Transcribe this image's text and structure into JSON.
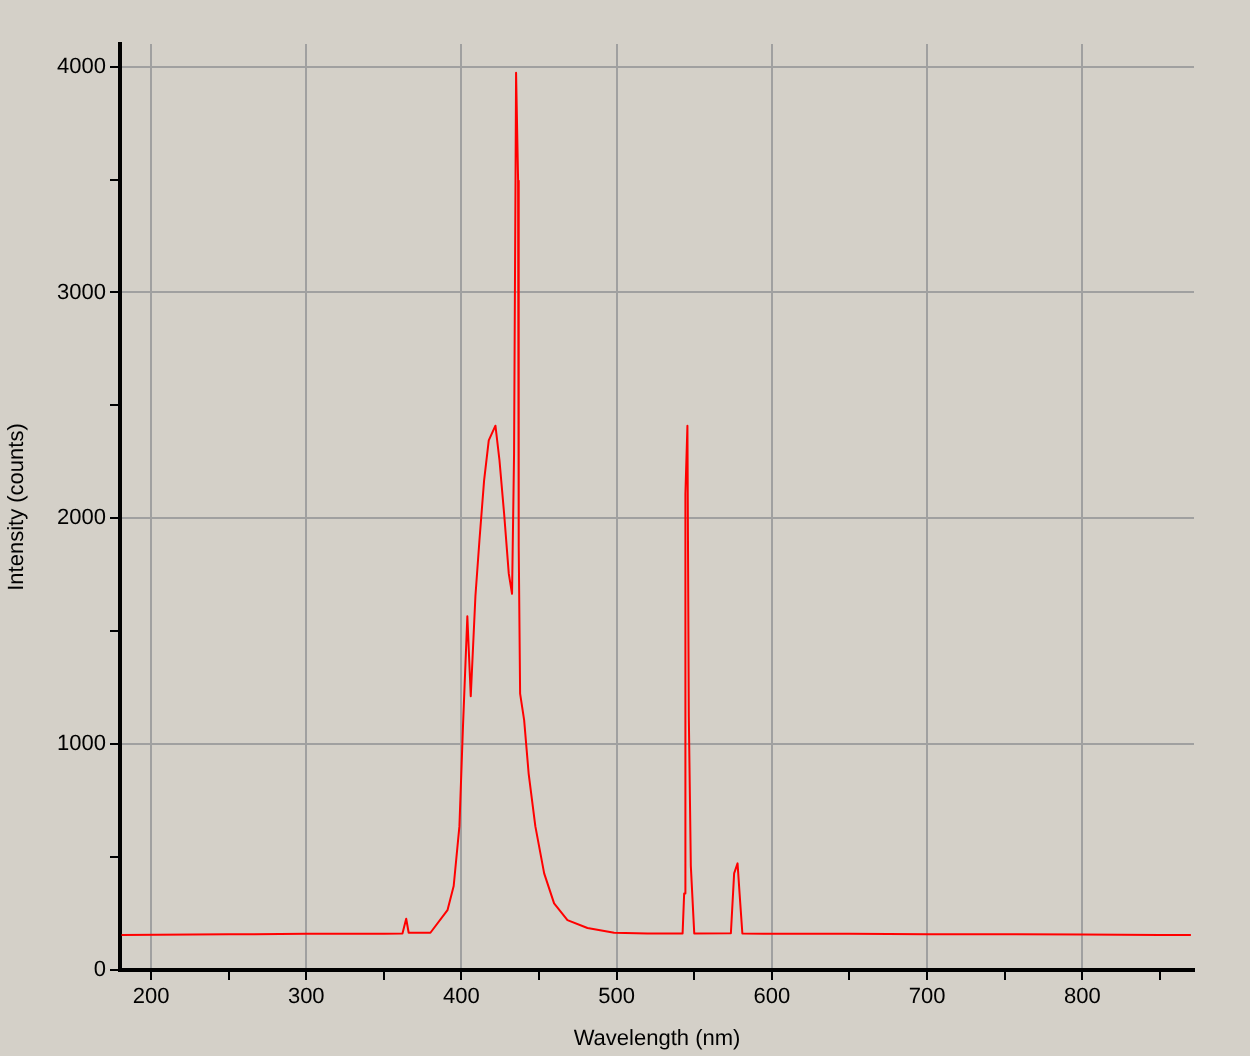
{
  "chart_data": {
    "type": "line",
    "xlabel": "Wavelength (nm)",
    "ylabel": "Intensity (counts)",
    "xlim": [
      180,
      872
    ],
    "ylim": [
      0,
      4100
    ],
    "xticks": [
      200,
      {
        "value": 250,
        "label": null
      },
      300,
      {
        "value": 350,
        "label": null
      },
      400,
      {
        "value": 450,
        "label": null
      },
      500,
      {
        "value": 550,
        "label": null
      },
      600,
      {
        "value": 650,
        "label": null
      },
      700,
      {
        "value": 750,
        "label": null
      },
      800,
      {
        "value": 850,
        "label": null
      }
    ],
    "yticks": [
      0,
      {
        "value": 500,
        "label": null
      },
      1000,
      {
        "value": 1500,
        "label": null
      },
      2000,
      {
        "value": 2500,
        "label": null
      },
      3000,
      {
        "value": 3500,
        "label": null
      },
      4000
    ],
    "grid": true,
    "marker": "none",
    "line_style": "solid",
    "series": [
      {
        "color": "#ff0000",
        "x": [
          181,
          250,
          300,
          350,
          362,
          364.4,
          366,
          380,
          391,
          395,
          398.7,
          401,
          403.8,
          406,
          409,
          411.6,
          414.6,
          417.6,
          421.9,
          424.5,
          427.5,
          430.5,
          432.6,
          433.9,
          435.2,
          436.5,
          436.9,
          437.8,
          440.4,
          443.3,
          447.6,
          453.3,
          459.7,
          468.3,
          481.2,
          498.4,
          519.8,
          542.5,
          543.5,
          544.3,
          545.6,
          546.5,
          547.8,
          550,
          573.6,
          575.7,
          577.9,
          579.2,
          581,
          600,
          650,
          700,
          750,
          800,
          850,
          870
        ],
        "values": [
          155,
          158,
          160,
          160,
          162,
          227,
          165,
          165,
          265,
          372,
          637,
          1080,
          1566,
          1212,
          1655,
          1903,
          2168,
          2345,
          2410,
          2257,
          2020,
          1755,
          1666,
          2286,
          3973,
          3495,
          1876,
          1224,
          1106,
          870,
          637,
          428,
          295,
          221,
          186,
          165,
          162,
          162,
          339,
          2109,
          2410,
          1124,
          460,
          162,
          163,
          428,
          472,
          339,
          162,
          160,
          160,
          158,
          158,
          157,
          155,
          155
        ]
      }
    ]
  }
}
